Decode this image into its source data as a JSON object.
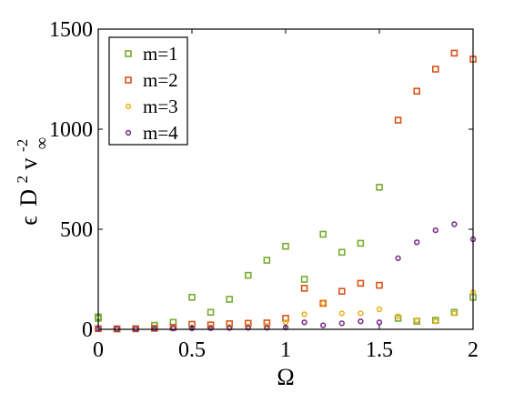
{
  "chart_data": {
    "type": "scatter",
    "title": "",
    "xlabel": "Ω",
    "ylabel_parts": {
      "eps": "ϵ",
      "D": "D",
      "D_exp": "2",
      "v": "v",
      "v_exp": "-2",
      "v_sub": "∞"
    },
    "xlim": [
      0,
      2
    ],
    "ylim": [
      0,
      1500
    ],
    "xticks": [
      0,
      0.5,
      1,
      1.5,
      2
    ],
    "xtick_labels": [
      "0",
      "0.5",
      "1",
      "1.5",
      "2"
    ],
    "yticks": [
      0,
      500,
      1000,
      1500
    ],
    "ytick_labels": [
      "0",
      "500",
      "1000",
      "1500"
    ],
    "grid": false,
    "legend_position": "top-left",
    "series": [
      {
        "name": "m=1",
        "color": "#77AC30",
        "marker": "square",
        "x": [
          0,
          0,
          0.1,
          0.2,
          0.3,
          0.4,
          0.5,
          0.6,
          0.7,
          0.8,
          0.9,
          1.0,
          1.1,
          1.2,
          1.3,
          1.4,
          1.5,
          1.6,
          1.7,
          1.8,
          1.9,
          2.0
        ],
        "y": [
          55,
          62,
          2,
          3,
          20,
          35,
          160,
          85,
          150,
          270,
          345,
          415,
          250,
          475,
          385,
          430,
          710,
          55,
          40,
          45,
          85,
          160
        ]
      },
      {
        "name": "m=2",
        "color": "#D95319",
        "marker": "square",
        "x": [
          0,
          0.1,
          0.2,
          0.3,
          0.4,
          0.5,
          0.6,
          0.7,
          0.8,
          0.9,
          1.0,
          1.1,
          1.2,
          1.3,
          1.4,
          1.5,
          1.6,
          1.7,
          1.8,
          1.9,
          2.0
        ],
        "y": [
          3,
          2,
          3,
          5,
          10,
          25,
          22,
          28,
          30,
          32,
          55,
          205,
          130,
          190,
          230,
          220,
          1045,
          1190,
          1300,
          1380,
          1350
        ]
      },
      {
        "name": "m=3",
        "color": "#EDB120",
        "marker": "circle",
        "x": [
          0,
          0.1,
          0.2,
          0.3,
          0.4,
          0.5,
          0.6,
          0.7,
          0.8,
          0.9,
          1.0,
          1.1,
          1.2,
          1.3,
          1.4,
          1.5,
          1.6,
          1.7,
          1.8,
          1.9,
          2.0
        ],
        "y": [
          4,
          2,
          3,
          4,
          6,
          8,
          10,
          12,
          15,
          18,
          35,
          75,
          130,
          80,
          80,
          100,
          65,
          45,
          40,
          80,
          185
        ]
      },
      {
        "name": "m=4",
        "color": "#7E2F8E",
        "marker": "circle",
        "x": [
          0,
          0.1,
          0.2,
          0.3,
          0.4,
          0.5,
          0.6,
          0.7,
          0.8,
          0.9,
          1.0,
          1.1,
          1.2,
          1.3,
          1.4,
          1.5,
          1.6,
          1.7,
          1.8,
          1.9,
          2.0
        ],
        "y": [
          3,
          2,
          2,
          3,
          4,
          5,
          6,
          7,
          8,
          8,
          9,
          35,
          20,
          30,
          40,
          35,
          355,
          435,
          495,
          525,
          450
        ]
      }
    ]
  }
}
